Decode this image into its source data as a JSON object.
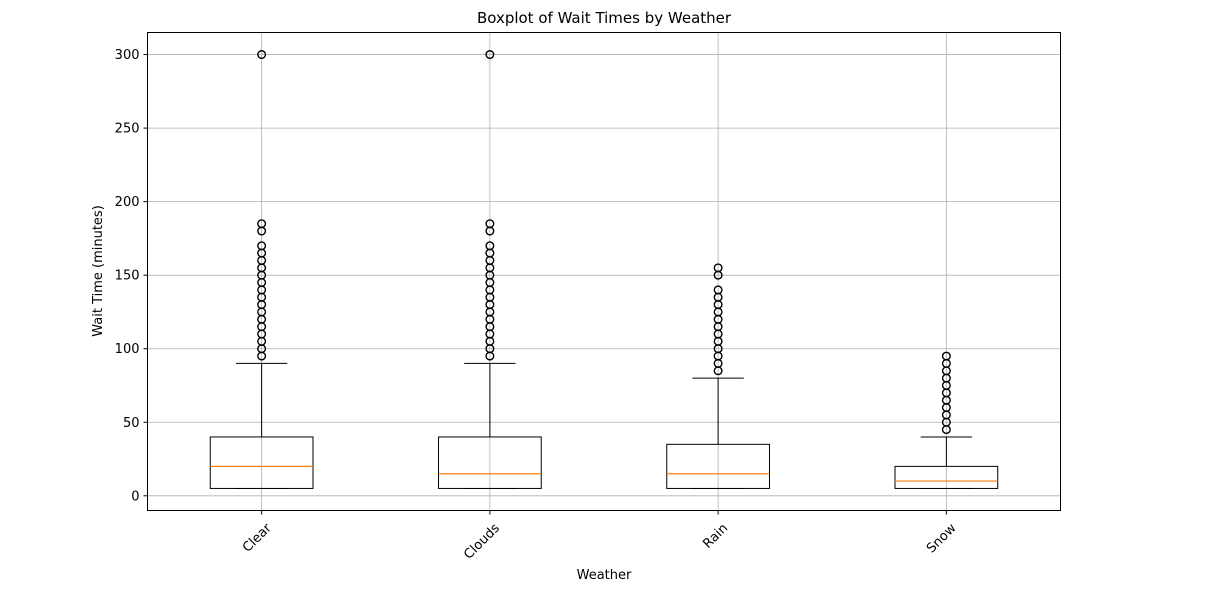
{
  "chart_data": {
    "type": "box",
    "title": "Boxplot of Wait Times by Weather",
    "xlabel": "Weather",
    "ylabel": "Wait Time (minutes)",
    "categories": [
      "Clear",
      "Clouds",
      "Rain",
      "Snow"
    ],
    "ylim": [
      -10,
      315
    ],
    "yticks": [
      0,
      50,
      100,
      150,
      200,
      250,
      300
    ],
    "grid": true,
    "boxes": [
      {
        "name": "Clear",
        "whisker_low": 5,
        "q1": 5,
        "median": 20,
        "q3": 40,
        "whisker_high": 90,
        "outliers": [
          95,
          100,
          105,
          110,
          115,
          120,
          125,
          130,
          135,
          140,
          145,
          150,
          155,
          160,
          165,
          170,
          180,
          185,
          300
        ]
      },
      {
        "name": "Clouds",
        "whisker_low": 5,
        "q1": 5,
        "median": 15,
        "q3": 40,
        "whisker_high": 90,
        "outliers": [
          95,
          100,
          105,
          110,
          115,
          120,
          125,
          130,
          135,
          140,
          145,
          150,
          155,
          160,
          165,
          170,
          180,
          185,
          300
        ]
      },
      {
        "name": "Rain",
        "whisker_low": 5,
        "q1": 5,
        "median": 15,
        "q3": 35,
        "whisker_high": 80,
        "outliers": [
          85,
          90,
          95,
          100,
          105,
          110,
          115,
          120,
          125,
          130,
          135,
          140,
          150,
          155
        ]
      },
      {
        "name": "Snow",
        "whisker_low": 5,
        "q1": 5,
        "median": 10,
        "q3": 20,
        "whisker_high": 40,
        "outliers": [
          45,
          50,
          55,
          60,
          65,
          70,
          75,
          80,
          85,
          90,
          95
        ]
      }
    ],
    "colors": {
      "box": "#000000",
      "median": "#ff7f0e",
      "grid": "#b0b0b0"
    }
  }
}
